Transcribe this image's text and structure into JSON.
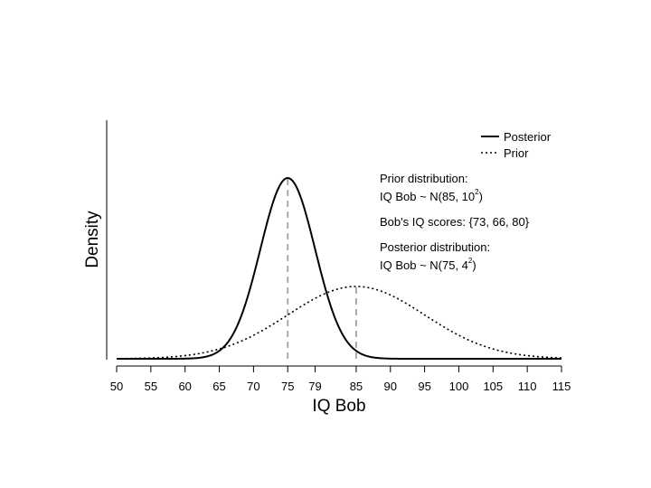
{
  "chart_data": {
    "type": "line",
    "xlabel": "IQ Bob",
    "ylabel": "Density",
    "xlim": [
      50,
      115
    ],
    "xticks": [
      50,
      55,
      60,
      65,
      70,
      75,
      79,
      85,
      90,
      95,
      100,
      105,
      110,
      115
    ],
    "yticks_shown": false,
    "grid": false,
    "legend_position": "top-right",
    "series": [
      {
        "name": "Posterior",
        "distribution": "normal",
        "mean": 75,
        "sd": 4,
        "line_style": "solid",
        "color": "#000000"
      },
      {
        "name": "Prior",
        "distribution": "normal",
        "mean": 85,
        "sd": 10,
        "line_style": "dotted",
        "color": "#000000"
      }
    ],
    "reference_lines": [
      {
        "x": 75,
        "style": "dashed",
        "color": "#aaaaaa"
      },
      {
        "x": 85,
        "style": "dashed",
        "color": "#aaaaaa"
      }
    ],
    "annotations": {
      "prior_heading": "Prior distribution:",
      "prior_formula_pre": "IQ Bob ~ N(85, 10",
      "prior_formula_sup": "2",
      "prior_formula_post": ")",
      "scores": "Bob's IQ scores: {73, 66, 80}",
      "posterior_heading": "Posterior distribution:",
      "posterior_formula_pre": "IQ Bob ~ N(75, 4",
      "posterior_formula_sup": "2",
      "posterior_formula_post": ")"
    }
  }
}
